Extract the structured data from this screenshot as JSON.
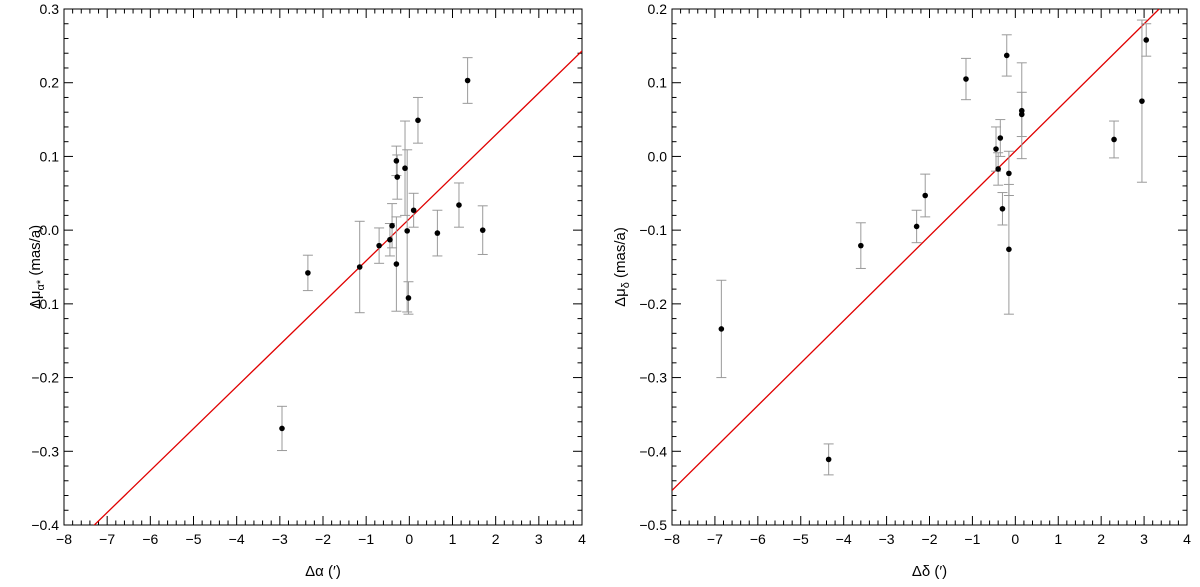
{
  "chart_data": [
    {
      "type": "scatter",
      "xlabel": "Δα (′)",
      "ylabel_main": "Δμ",
      "ylabel_sub": "α*",
      "ylabel_unit": " (mas/a)",
      "xlim": [
        -8,
        4
      ],
      "ylim": [
        -0.4,
        0.3
      ],
      "xticks": [
        -8,
        -7,
        -6,
        -5,
        -4,
        -3,
        -2,
        -1,
        0,
        1,
        2,
        3,
        4
      ],
      "yticks": [
        -0.4,
        -0.3,
        -0.2,
        -0.1,
        0.0,
        0.1,
        0.2,
        0.3
      ],
      "xtick_labels": [
        "−8",
        "−7",
        "−6",
        "−5",
        "−4",
        "−3",
        "−2",
        "−1",
        "0",
        "1",
        "2",
        "3",
        "4"
      ],
      "ytick_labels": [
        "−0.4",
        "−0.3",
        "−0.2",
        "−0.1",
        "0.0",
        "0.1",
        "0.2",
        "0.3"
      ],
      "grid": false,
      "fit_line": {
        "x": [
          -8,
          4
        ],
        "y": [
          -0.44,
          0.243
        ],
        "color": "#e00000"
      },
      "points": [
        {
          "x": 1.35,
          "y": 0.203,
          "err": 0.031
        },
        {
          "x": 0.2,
          "y": 0.149,
          "err": 0.031
        },
        {
          "x": -0.3,
          "y": 0.094,
          "err": 0.02
        },
        {
          "x": -0.1,
          "y": 0.084,
          "err": 0.064
        },
        {
          "x": -0.28,
          "y": 0.072,
          "err": 0.03
        },
        {
          "x": 1.15,
          "y": 0.034,
          "err": 0.03
        },
        {
          "x": 0.1,
          "y": 0.027,
          "err": 0.023
        },
        {
          "x": -0.4,
          "y": 0.006,
          "err": 0.03
        },
        {
          "x": 1.7,
          "y": 0.0,
          "err": 0.033
        },
        {
          "x": -0.05,
          "y": -0.001,
          "err": 0.11
        },
        {
          "x": 0.65,
          "y": -0.004,
          "err": 0.031
        },
        {
          "x": -0.45,
          "y": -0.013,
          "err": 0.022
        },
        {
          "x": -0.7,
          "y": -0.021,
          "err": 0.024
        },
        {
          "x": -0.3,
          "y": -0.046,
          "err": 0.064
        },
        {
          "x": -1.15,
          "y": -0.05,
          "err": 0.062
        },
        {
          "x": -2.35,
          "y": -0.058,
          "err": 0.024
        },
        {
          "x": -0.02,
          "y": -0.092,
          "err": 0.022
        },
        {
          "x": -2.95,
          "y": -0.269,
          "err": 0.03
        }
      ]
    },
    {
      "type": "scatter",
      "xlabel": "Δδ (′)",
      "ylabel_main": "Δμ",
      "ylabel_sub": "δ",
      "ylabel_unit": " (mas/a)",
      "xlim": [
        -8,
        4
      ],
      "ylim": [
        -0.5,
        0.2
      ],
      "xticks": [
        -8,
        -7,
        -6,
        -5,
        -4,
        -3,
        -2,
        -1,
        0,
        1,
        2,
        3,
        4
      ],
      "yticks": [
        -0.5,
        -0.4,
        -0.3,
        -0.2,
        -0.1,
        0.0,
        0.1,
        0.2
      ],
      "xtick_labels": [
        "−8",
        "−7",
        "−6",
        "−5",
        "−4",
        "−3",
        "−2",
        "−1",
        "0",
        "1",
        "2",
        "3",
        "4"
      ],
      "ytick_labels": [
        "−0.5",
        "−0.4",
        "−0.3",
        "−0.2",
        "−0.1",
        "0.0",
        "0.1",
        "0.2"
      ],
      "grid": false,
      "fit_line": {
        "x": [
          -8,
          3.35
        ],
        "y": [
          -0.453,
          0.2
        ],
        "color": "#e00000"
      },
      "points": [
        {
          "x": 3.05,
          "y": 0.158,
          "err": 0.022
        },
        {
          "x": -0.2,
          "y": 0.137,
          "err": 0.028
        },
        {
          "x": -1.15,
          "y": 0.105,
          "err": 0.028
        },
        {
          "x": 2.95,
          "y": 0.075,
          "err": 0.11
        },
        {
          "x": 0.15,
          "y": 0.062,
          "err": 0.065
        },
        {
          "x": 0.15,
          "y": 0.057,
          "err": 0.03
        },
        {
          "x": -0.35,
          "y": 0.025,
          "err": 0.025
        },
        {
          "x": 2.3,
          "y": 0.023,
          "err": 0.025
        },
        {
          "x": -0.45,
          "y": 0.01,
          "err": 0.03
        },
        {
          "x": -0.4,
          "y": -0.017,
          "err": 0.022
        },
        {
          "x": -0.15,
          "y": -0.023,
          "err": 0.03
        },
        {
          "x": -2.1,
          "y": -0.053,
          "err": 0.029
        },
        {
          "x": -0.3,
          "y": -0.071,
          "err": 0.022
        },
        {
          "x": -2.3,
          "y": -0.095,
          "err": 0.022
        },
        {
          "x": -3.6,
          "y": -0.121,
          "err": 0.031
        },
        {
          "x": -0.15,
          "y": -0.126,
          "err": 0.088
        },
        {
          "x": -6.85,
          "y": -0.234,
          "err": 0.066
        },
        {
          "x": -4.35,
          "y": -0.411,
          "err": 0.021
        }
      ]
    }
  ],
  "colors": {
    "fit": "#e00000",
    "errorbar": "#9a9a9a",
    "point": "#000000"
  }
}
